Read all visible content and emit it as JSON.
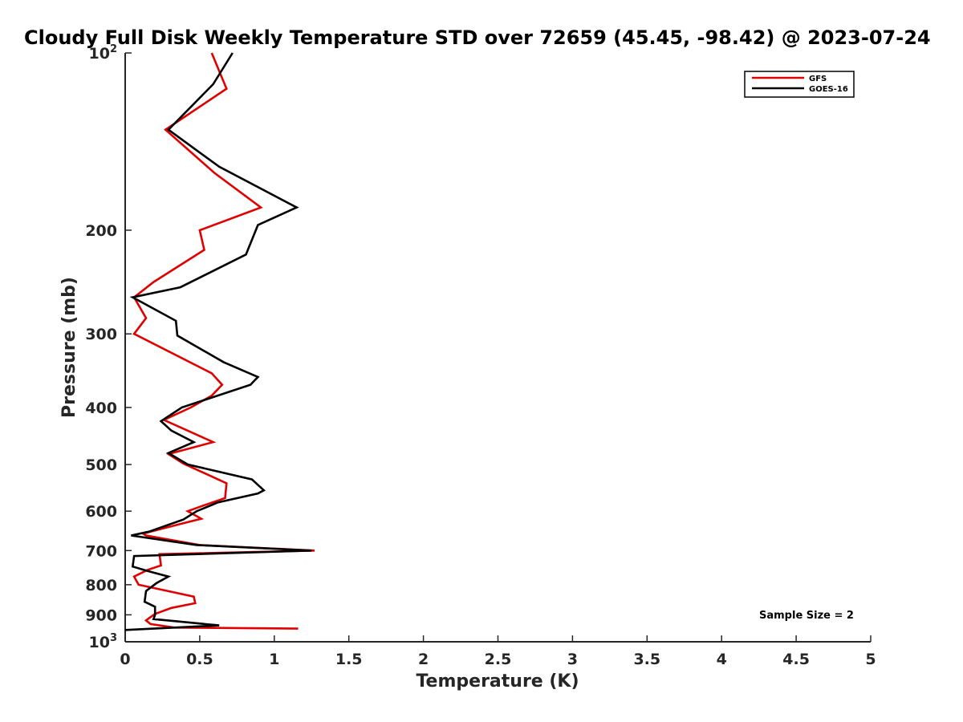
{
  "chart_data": {
    "type": "line",
    "title": "Cloudy Full Disk Weekly Temperature STD over 72659 (45.45, -98.42) @ 2023-07-24",
    "xlabel": "Temperature (K)",
    "ylabel": "Pressure (mb)",
    "xlim": [
      0,
      5
    ],
    "ylim": [
      1000,
      100
    ],
    "yscale": "log",
    "y_reversed": true,
    "x_ticks": [
      0,
      0.5,
      1,
      1.5,
      2,
      2.5,
      3,
      3.5,
      4,
      4.5,
      5
    ],
    "x_tick_labels": [
      "0",
      "0.5",
      "1",
      "1.5",
      "2",
      "2.5",
      "3",
      "3.5",
      "4",
      "4.5",
      "5"
    ],
    "y_ticks": [
      100,
      200,
      300,
      400,
      500,
      600,
      700,
      800,
      900,
      1000
    ],
    "y_tick_labels": [
      {
        "base": "10",
        "sup": "2"
      },
      {
        "base": "200",
        "sup": ""
      },
      {
        "base": "300",
        "sup": ""
      },
      {
        "base": "400",
        "sup": ""
      },
      {
        "base": "500",
        "sup": ""
      },
      {
        "base": "600",
        "sup": ""
      },
      {
        "base": "700",
        "sup": ""
      },
      {
        "base": "800",
        "sup": ""
      },
      {
        "base": "900",
        "sup": ""
      },
      {
        "base": "10",
        "sup": "3"
      }
    ],
    "grid": false,
    "legend_position": "top-right",
    "annotation": "Sample Size = 2",
    "series": [
      {
        "name": "GFS",
        "color": "#e00000",
        "points": [
          [
            0.58,
            100
          ],
          [
            0.68,
            115
          ],
          [
            0.27,
            135
          ],
          [
            0.6,
            160
          ],
          [
            0.91,
            183
          ],
          [
            0.5,
            200
          ],
          [
            0.53,
            216
          ],
          [
            0.19,
            245
          ],
          [
            0.06,
            260
          ],
          [
            0.14,
            282
          ],
          [
            0.06,
            300
          ],
          [
            0.58,
            350
          ],
          [
            0.65,
            366
          ],
          [
            0.58,
            382
          ],
          [
            0.44,
            400
          ],
          [
            0.26,
            420
          ],
          [
            0.59,
            458
          ],
          [
            0.29,
            480
          ],
          [
            0.39,
            498
          ],
          [
            0.68,
            538
          ],
          [
            0.67,
            570
          ],
          [
            0.5,
            590
          ],
          [
            0.42,
            600
          ],
          [
            0.51,
            618
          ],
          [
            0.4,
            628
          ],
          [
            0.12,
            655
          ],
          [
            0.14,
            660
          ],
          [
            0.5,
            685
          ],
          [
            1.27,
            700
          ],
          [
            0.23,
            710
          ],
          [
            0.24,
            742
          ],
          [
            0.15,
            755
          ],
          [
            0.06,
            775
          ],
          [
            0.09,
            800
          ],
          [
            0.46,
            838
          ],
          [
            0.47,
            860
          ],
          [
            0.31,
            876
          ],
          [
            0.2,
            897
          ],
          [
            0.16,
            912
          ],
          [
            0.14,
            920
          ],
          [
            0.17,
            933
          ],
          [
            0.33,
            946
          ],
          [
            1.16,
            950
          ]
        ]
      },
      {
        "name": "GOES-16",
        "color": "#000000",
        "points": [
          [
            0.72,
            100
          ],
          [
            0.59,
            113
          ],
          [
            0.29,
            135
          ],
          [
            0.63,
            156
          ],
          [
            1.15,
            183
          ],
          [
            0.89,
            196
          ],
          [
            0.81,
            220
          ],
          [
            0.37,
            250
          ],
          [
            0.05,
            260
          ],
          [
            0.34,
            285
          ],
          [
            0.35,
            302
          ],
          [
            0.66,
            335
          ],
          [
            0.89,
            355
          ],
          [
            0.84,
            366
          ],
          [
            0.38,
            400
          ],
          [
            0.24,
            422
          ],
          [
            0.31,
            438
          ],
          [
            0.46,
            458
          ],
          [
            0.29,
            478
          ],
          [
            0.42,
            500
          ],
          [
            0.85,
            530
          ],
          [
            0.93,
            553
          ],
          [
            0.89,
            560
          ],
          [
            0.62,
            580
          ],
          [
            0.48,
            600
          ],
          [
            0.39,
            620
          ],
          [
            0.16,
            650
          ],
          [
            0.04,
            660
          ],
          [
            0.48,
            685
          ],
          [
            1.25,
            700
          ],
          [
            0.06,
            715
          ],
          [
            0.05,
            745
          ],
          [
            0.15,
            758
          ],
          [
            0.29,
            775
          ],
          [
            0.21,
            795
          ],
          [
            0.14,
            820
          ],
          [
            0.13,
            855
          ],
          [
            0.2,
            872
          ],
          [
            0.2,
            900
          ],
          [
            0.19,
            915
          ],
          [
            0.63,
            938
          ],
          [
            0.0,
            955
          ]
        ]
      }
    ]
  }
}
